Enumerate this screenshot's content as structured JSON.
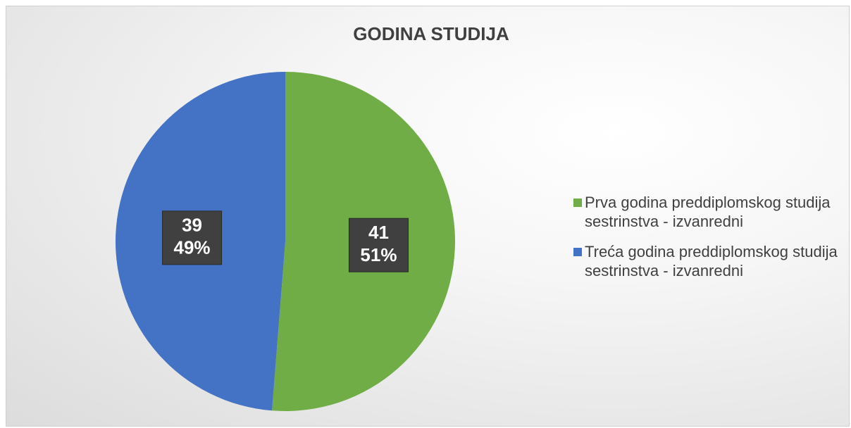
{
  "chart_data": {
    "type": "pie",
    "title": "GODINA STUDIJA",
    "series": [
      {
        "name": "Prva godina preddiplomskog studija sestrinstva - izvanredni",
        "color": "#70ad47"
      },
      {
        "name": "Treća godina preddiplomskog studija sestrinstva - izvanredni",
        "color": "#4472c4"
      }
    ],
    "values": [
      41,
      39
    ],
    "percent_labels": [
      "51%",
      "49%"
    ],
    "legend": "right"
  }
}
